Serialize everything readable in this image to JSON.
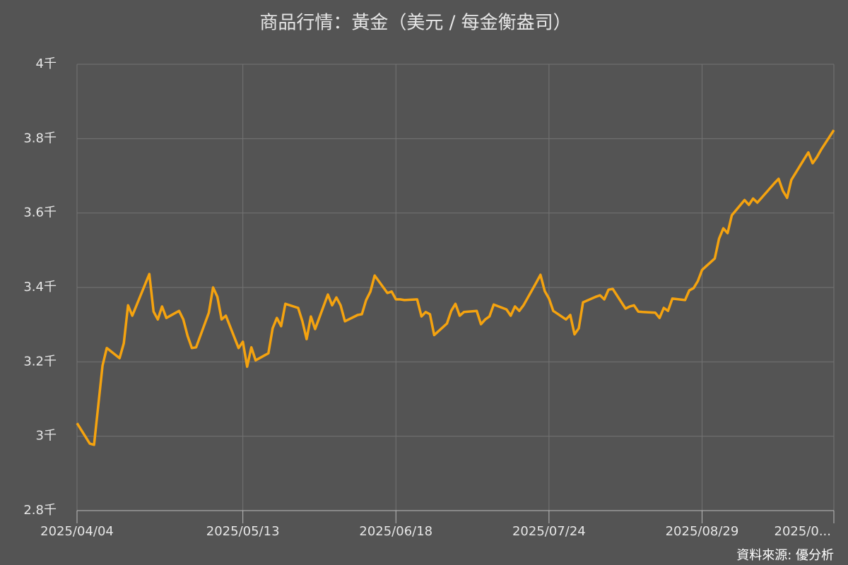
{
  "chart_data": {
    "type": "line",
    "title": "商品行情：黃金（美元 / 每金衡盎司）",
    "source": "資料來源: 優分析",
    "x": [
      "2025/04/04",
      "2025/04/07",
      "2025/04/08",
      "2025/04/10",
      "2025/04/11",
      "2025/04/14",
      "2025/04/15",
      "2025/04/16",
      "2025/04/17",
      "2025/04/21",
      "2025/04/22",
      "2025/04/23",
      "2025/04/24",
      "2025/04/25",
      "2025/04/28",
      "2025/04/29",
      "2025/04/30",
      "2025/05/01",
      "2025/05/02",
      "2025/05/05",
      "2025/05/06",
      "2025/05/07",
      "2025/05/08",
      "2025/05/09",
      "2025/05/12",
      "2025/05/13",
      "2025/05/14",
      "2025/05/15",
      "2025/05/16",
      "2025/05/19",
      "2025/05/20",
      "2025/05/21",
      "2025/05/22",
      "2025/05/23",
      "2025/05/26",
      "2025/05/27",
      "2025/05/28",
      "2025/05/29",
      "2025/05/30",
      "2025/06/02",
      "2025/06/03",
      "2025/06/04",
      "2025/06/05",
      "2025/06/06",
      "2025/06/09",
      "2025/06/10",
      "2025/06/11",
      "2025/06/12",
      "2025/06/13",
      "2025/06/16",
      "2025/06/17",
      "2025/06/18",
      "2025/06/19",
      "2025/06/20",
      "2025/06/23",
      "2025/06/24",
      "2025/06/25",
      "2025/06/26",
      "2025/06/27",
      "2025/06/30",
      "2025/07/01",
      "2025/07/02",
      "2025/07/03",
      "2025/07/04",
      "2025/07/07",
      "2025/07/08",
      "2025/07/09",
      "2025/07/10",
      "2025/07/11",
      "2025/07/14",
      "2025/07/15",
      "2025/07/16",
      "2025/07/17",
      "2025/07/18",
      "2025/07/21",
      "2025/07/22",
      "2025/07/23",
      "2025/07/24",
      "2025/07/25",
      "2025/07/28",
      "2025/07/29",
      "2025/07/30",
      "2025/07/31",
      "2025/08/01",
      "2025/08/04",
      "2025/08/05",
      "2025/08/06",
      "2025/08/07",
      "2025/08/08",
      "2025/08/11",
      "2025/08/12",
      "2025/08/13",
      "2025/08/14",
      "2025/08/15",
      "2025/08/18",
      "2025/08/19",
      "2025/08/20",
      "2025/08/21",
      "2025/08/22",
      "2025/08/25",
      "2025/08/26",
      "2025/08/27",
      "2025/08/28",
      "2025/08/29",
      "2025/09/01",
      "2025/09/02",
      "2025/09/03",
      "2025/09/04",
      "2025/09/05",
      "2025/09/08",
      "2025/09/09",
      "2025/09/10",
      "2025/09/11",
      "2025/09/12",
      "2025/09/15",
      "2025/09/16",
      "2025/09/17",
      "2025/09/18",
      "2025/09/19",
      "2025/09/22",
      "2025/09/23",
      "2025/09/24",
      "2025/09/25",
      "2025/09/26",
      "2025/09/29"
    ],
    "series": [
      {
        "name": "黃金",
        "color": "#f5a30f",
        "values": [
          3.035,
          2.98,
          2.977,
          3.19,
          3.237,
          3.21,
          3.25,
          3.352,
          3.324,
          3.436,
          3.335,
          3.314,
          3.349,
          3.318,
          3.337,
          3.314,
          3.27,
          3.237,
          3.239,
          3.332,
          3.4,
          3.375,
          3.314,
          3.324,
          3.237,
          3.254,
          3.187,
          3.239,
          3.204,
          3.223,
          3.29,
          3.318,
          3.296,
          3.356,
          3.345,
          3.309,
          3.261,
          3.322,
          3.288,
          3.381,
          3.352,
          3.373,
          3.352,
          3.309,
          3.326,
          3.328,
          3.366,
          3.389,
          3.432,
          3.385,
          3.389,
          3.368,
          3.368,
          3.366,
          3.368,
          3.322,
          3.334,
          3.328,
          3.272,
          3.303,
          3.337,
          3.356,
          3.324,
          3.334,
          3.337,
          3.301,
          3.314,
          3.322,
          3.354,
          3.341,
          3.324,
          3.349,
          3.337,
          3.352,
          3.413,
          3.434,
          3.39,
          3.37,
          3.337,
          3.314,
          3.326,
          3.274,
          3.29,
          3.36,
          3.375,
          3.379,
          3.368,
          3.394,
          3.396,
          3.343,
          3.349,
          3.352,
          3.335,
          3.334,
          3.332,
          3.318,
          3.345,
          3.337,
          3.37,
          3.366,
          3.392,
          3.398,
          3.417,
          3.447,
          3.478,
          3.531,
          3.559,
          3.546,
          3.594,
          3.635,
          3.622,
          3.639,
          3.628,
          3.641,
          3.68,
          3.692,
          3.66,
          3.641,
          3.689,
          3.745,
          3.763,
          3.734,
          3.75,
          3.77,
          3.823
        ]
      }
    ],
    "xlim": [
      "2025/04/04",
      "2025/09/29"
    ],
    "xticks": [
      "2025/04/04",
      "2025/05/13",
      "2025/06/18",
      "2025/07/24",
      "2025/08/29",
      {
        "value": "2025/09/29",
        "label": "2025/0..."
      }
    ],
    "ylim": [
      2.8,
      4
    ],
    "yticks": [
      {
        "value": 2.8,
        "label": "2.8千"
      },
      {
        "value": 3,
        "label": "3千"
      },
      {
        "value": 3.2,
        "label": "3.2千"
      },
      {
        "value": 3.4,
        "label": "3.4千"
      },
      {
        "value": 3.6,
        "label": "3.6千"
      },
      {
        "value": 3.8,
        "label": "3.8千"
      },
      {
        "value": 4,
        "label": "4千"
      }
    ],
    "grid": true
  }
}
